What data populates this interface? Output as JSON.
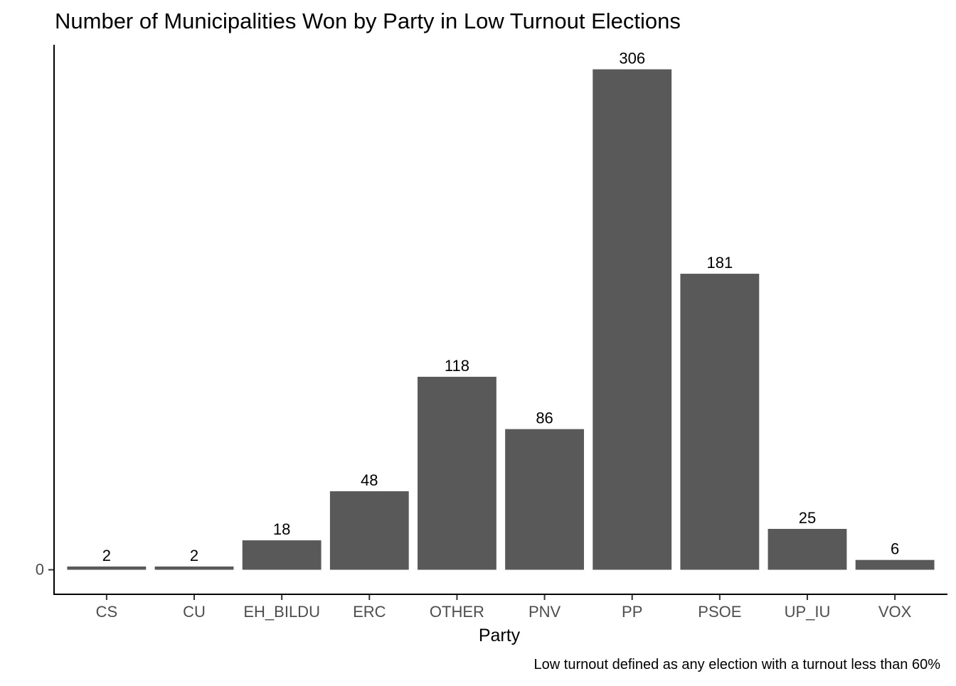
{
  "chart_data": {
    "type": "bar",
    "title": "Number of Municipalities Won by Party in Low Turnout Elections",
    "xlabel": "Party",
    "ylabel": "",
    "caption": "Low turnout defined as any election with a turnout less than 60%",
    "categories": [
      "CS",
      "CU",
      "EH_BILDU",
      "ERC",
      "OTHER",
      "PNV",
      "PP",
      "PSOE",
      "UP_IU",
      "VOX"
    ],
    "values": [
      2,
      2,
      18,
      48,
      118,
      86,
      306,
      181,
      25,
      6
    ],
    "data_labels": [
      "2",
      "2",
      "18",
      "48",
      "118",
      "86",
      "306",
      "181",
      "25",
      "6"
    ],
    "y_ticks": [
      0
    ],
    "y_tick_labels": [
      "0"
    ],
    "ylim": [
      -15,
      321
    ],
    "grid": false,
    "legend": "none",
    "bar_color": "#595959"
  }
}
